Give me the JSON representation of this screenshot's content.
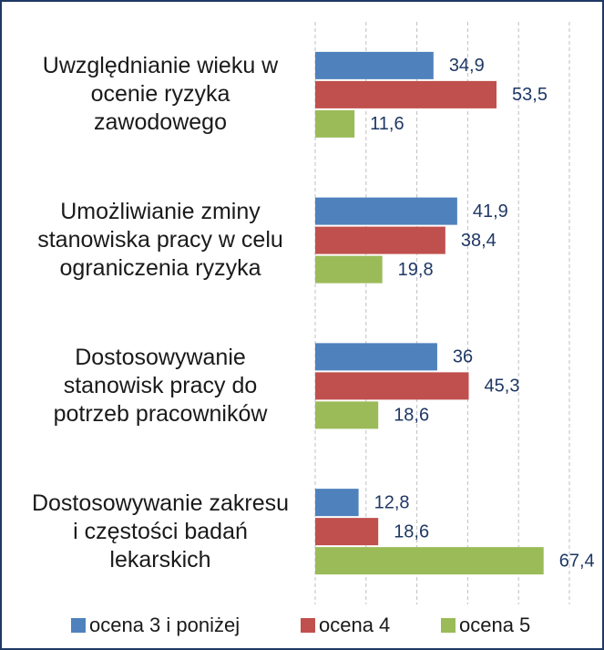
{
  "chart_data": {
    "type": "hbar",
    "categories": [
      "Uwzględnianie wieku w ocenie ryzyka zawodowego",
      "Umożliwianie zminy stanowiska pracy w celu ograniczenia ryzyka",
      "Dostosowywanie stanowisk pracy do potrzeb pracowników",
      "Dostosowywanie zakresu i częstości badań lekarskich"
    ],
    "series": [
      {
        "name": "ocena 3 i poniżej",
        "color": "#4f81bd",
        "values": [
          34.9,
          41.9,
          36,
          12.8
        ],
        "value_labels": [
          "34,9",
          "41,9",
          "36",
          "12,8"
        ]
      },
      {
        "name": "ocena 4",
        "color": "#c0504d",
        "values": [
          53.5,
          38.4,
          45.3,
          18.6
        ],
        "value_labels": [
          "53,5",
          "38,4",
          "45,3",
          "18,6"
        ]
      },
      {
        "name": "ocena 5",
        "color": "#9bbb59",
        "values": [
          11.6,
          19.8,
          18.6,
          67.4
        ],
        "value_labels": [
          "11,6",
          "19,8",
          "18,6",
          "67,4"
        ]
      }
    ],
    "xlim": [
      0,
      75
    ],
    "xticks": [
      0,
      15,
      30,
      45,
      60,
      75
    ],
    "grid": true,
    "legend": "bottom"
  }
}
